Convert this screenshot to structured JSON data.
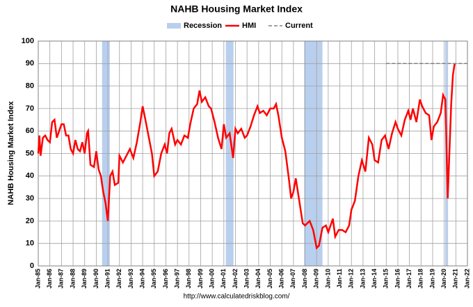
{
  "chart_data": {
    "type": "line",
    "title": "NAHB Housing Market Index",
    "y_label": "NAHB Housing Market Index",
    "source": "http://www.calculatedriskblog.com/",
    "recession_name": "Recession",
    "recession_color": "#b9cfee",
    "recessions": [
      [
        1990.5,
        1991.17
      ],
      [
        2001.17,
        2001.83
      ],
      [
        2007.92,
        2009.5
      ],
      [
        2020.08,
        2020.33
      ]
    ],
    "grid": true,
    "xlim": [
      1985,
      2022
    ],
    "xticks": [
      {
        "value": 1985,
        "label": "Jan-85"
      },
      {
        "value": 1986,
        "label": "Jan-86"
      },
      {
        "value": 1987,
        "label": "Jan-87"
      },
      {
        "value": 1988,
        "label": "Jan-88"
      },
      {
        "value": 1989,
        "label": "Jan-89"
      },
      {
        "value": 1990,
        "label": "Jan-90"
      },
      {
        "value": 1991,
        "label": "Jan-91"
      },
      {
        "value": 1992,
        "label": "Jan-92"
      },
      {
        "value": 1993,
        "label": "Jan-93"
      },
      {
        "value": 1994,
        "label": "Jan-94"
      },
      {
        "value": 1995,
        "label": "Jan-95"
      },
      {
        "value": 1996,
        "label": "Jan-96"
      },
      {
        "value": 1997,
        "label": "Jan-97"
      },
      {
        "value": 1998,
        "label": "Jan-98"
      },
      {
        "value": 1999,
        "label": "Jan-99"
      },
      {
        "value": 2000,
        "label": "Jan-00"
      },
      {
        "value": 2001,
        "label": "Jan-01"
      },
      {
        "value": 2002,
        "label": "Jan-02"
      },
      {
        "value": 2003,
        "label": "Jan-03"
      },
      {
        "value": 2004,
        "label": "Jan-04"
      },
      {
        "value": 2005,
        "label": "Jan-05"
      },
      {
        "value": 2006,
        "label": "Jan-06"
      },
      {
        "value": 2007,
        "label": "Jan-07"
      },
      {
        "value": 2008,
        "label": "Jan-08"
      },
      {
        "value": 2009,
        "label": "Jan-09"
      },
      {
        "value": 2010,
        "label": "Jan-10"
      },
      {
        "value": 2011,
        "label": "Jan-11"
      },
      {
        "value": 2012,
        "label": "Jan-12"
      },
      {
        "value": 2013,
        "label": "Jan-13"
      },
      {
        "value": 2014,
        "label": "Jan-14"
      },
      {
        "value": 2015,
        "label": "Jan-15"
      },
      {
        "value": 2016,
        "label": "Jan-16"
      },
      {
        "value": 2017,
        "label": "Jan-17"
      },
      {
        "value": 2018,
        "label": "Jan-18"
      },
      {
        "value": 2019,
        "label": "Jan-19"
      },
      {
        "value": 2020,
        "label": "Jan-20"
      },
      {
        "value": 2021,
        "label": "Jan-21"
      },
      {
        "value": 2022,
        "label": "Jan-22"
      }
    ],
    "ylim": [
      0,
      100
    ],
    "yticks": [
      0,
      10,
      20,
      30,
      40,
      50,
      60,
      70,
      80,
      90,
      100
    ],
    "series": [
      {
        "name": "HMI",
        "color": "#ff0000",
        "dash": false,
        "x": [
          1985.0,
          1985.1,
          1985.2,
          1985.4,
          1985.6,
          1985.8,
          1986.0,
          1986.2,
          1986.4,
          1986.6,
          1986.8,
          1987.0,
          1987.2,
          1987.4,
          1987.6,
          1987.8,
          1988.0,
          1988.2,
          1988.4,
          1988.6,
          1988.8,
          1989.0,
          1989.2,
          1989.3,
          1989.5,
          1989.8,
          1990.0,
          1990.2,
          1990.4,
          1990.6,
          1990.8,
          1991.0,
          1991.2,
          1991.4,
          1991.6,
          1991.9,
          1992.0,
          1992.3,
          1992.6,
          1992.9,
          1993.2,
          1993.5,
          1993.8,
          1994.0,
          1994.2,
          1994.5,
          1994.8,
          1995.0,
          1995.3,
          1995.6,
          1995.9,
          1996.1,
          1996.3,
          1996.5,
          1996.8,
          1997.0,
          1997.3,
          1997.6,
          1997.9,
          1998.1,
          1998.4,
          1998.7,
          1998.9,
          1999.1,
          1999.4,
          1999.7,
          1999.9,
          2000.2,
          2000.5,
          2000.8,
          2001.0,
          2001.2,
          2001.5,
          2001.8,
          2002.0,
          2002.2,
          2002.5,
          2002.8,
          2003.0,
          2003.3,
          2003.6,
          2003.9,
          2004.1,
          2004.4,
          2004.7,
          2005.0,
          2005.3,
          2005.5,
          2005.7,
          2006.0,
          2006.3,
          2006.6,
          2006.8,
          2007.0,
          2007.2,
          2007.5,
          2007.8,
          2008.0,
          2008.4,
          2008.7,
          2009.0,
          2009.2,
          2009.5,
          2009.8,
          2010.0,
          2010.4,
          2010.6,
          2010.9,
          2011.2,
          2011.5,
          2011.8,
          2012.0,
          2012.3,
          2012.6,
          2012.9,
          2013.2,
          2013.5,
          2013.8,
          2014.0,
          2014.3,
          2014.6,
          2014.9,
          2015.2,
          2015.5,
          2015.8,
          2016.0,
          2016.3,
          2016.6,
          2016.9,
          2017.1,
          2017.3,
          2017.6,
          2017.9,
          2018.1,
          2018.4,
          2018.7,
          2018.9,
          2019.1,
          2019.4,
          2019.7,
          2019.9,
          2020.1,
          2020.3,
          2020.5,
          2020.6,
          2020.75,
          2020.9
        ],
        "values": [
          50,
          58,
          49,
          57,
          58,
          56,
          55,
          64,
          65,
          57,
          60,
          63,
          63,
          58,
          58,
          52,
          50,
          56,
          52,
          51,
          55,
          50,
          59,
          60,
          45,
          44,
          51,
          43,
          40,
          33,
          28,
          20,
          40,
          42,
          36,
          37,
          49,
          46,
          49,
          52,
          48,
          55,
          64,
          71,
          66,
          58,
          50,
          40,
          42,
          50,
          54,
          50,
          59,
          61,
          54,
          56,
          54,
          58,
          57,
          63,
          70,
          72,
          78,
          73,
          75,
          71,
          70,
          64,
          57,
          52,
          63,
          57,
          59,
          48,
          61,
          59,
          61,
          57,
          58,
          62,
          67,
          71,
          68,
          69,
          67,
          70,
          70,
          72,
          67,
          57,
          51,
          39,
          30,
          33,
          39,
          29,
          19,
          18,
          20,
          16,
          8,
          9,
          17,
          18,
          15,
          21,
          13,
          16,
          16,
          15,
          18,
          25,
          29,
          40,
          47,
          42,
          57,
          54,
          47,
          46,
          56,
          58,
          52,
          59,
          64,
          61,
          58,
          65,
          69,
          65,
          70,
          64,
          74,
          71,
          68,
          67,
          56,
          62,
          64,
          68,
          76,
          74,
          30,
          58,
          72,
          85,
          90
        ]
      },
      {
        "name": "Current",
        "color": "#808080",
        "dash": true,
        "x": [
          2015,
          2022
        ],
        "values": [
          90,
          90
        ]
      }
    ]
  }
}
